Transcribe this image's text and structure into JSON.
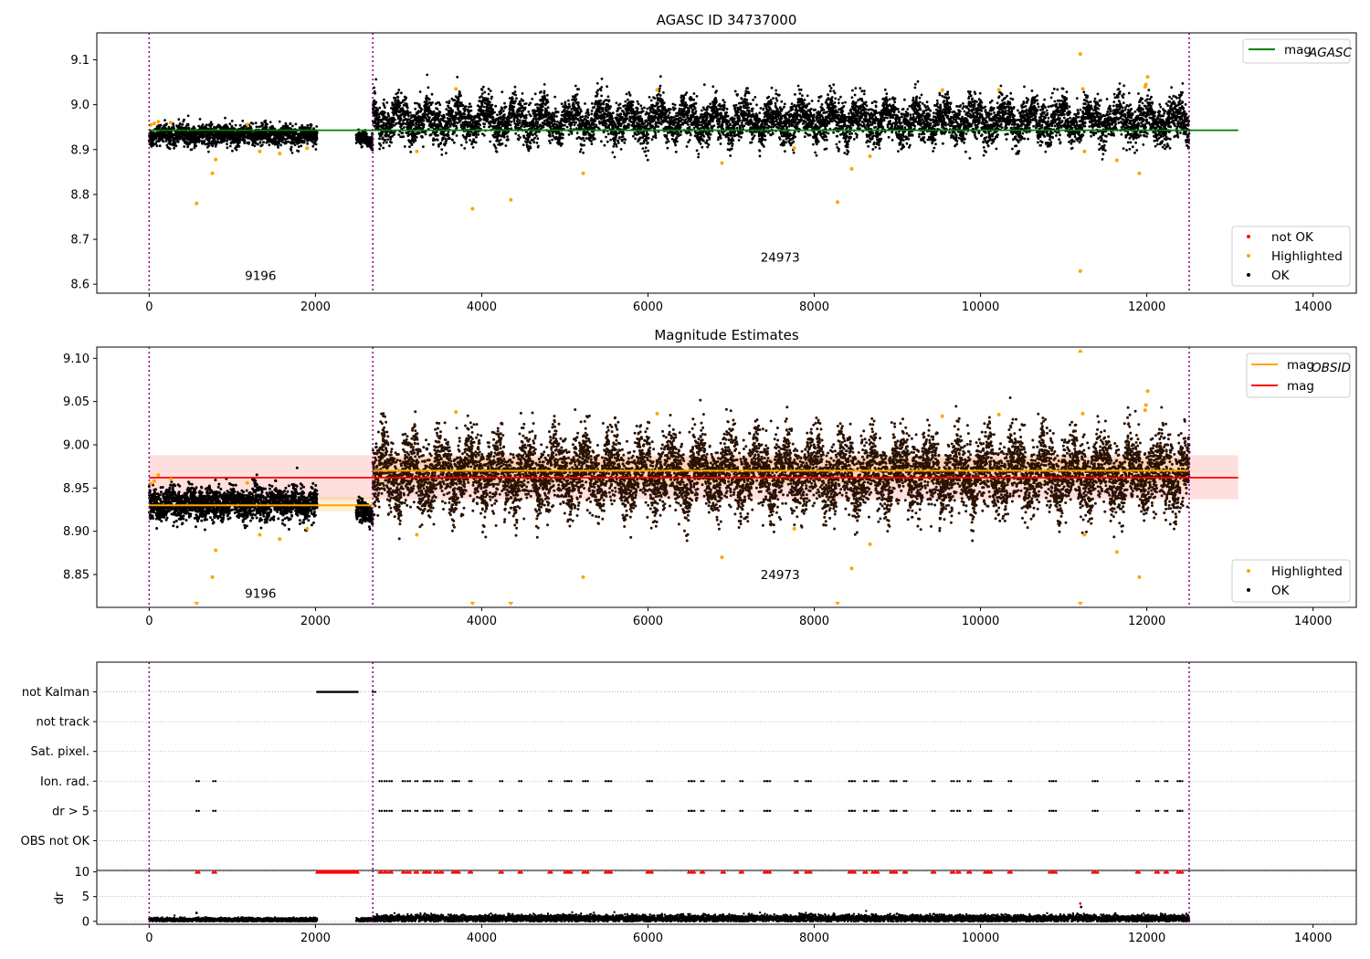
{
  "chart_data": [
    {
      "type": "scatter",
      "title": "AGASC ID 34737000",
      "xlabel": "",
      "ylabel": "",
      "xlim": [
        -630,
        14520
      ],
      "ylim": [
        8.58,
        9.16
      ],
      "xticks": [
        0,
        2000,
        4000,
        6000,
        8000,
        10000,
        12000,
        14000
      ],
      "xtick_labels": [
        "0",
        "2000",
        "4000",
        "6000",
        "8000",
        "10000",
        "12000",
        "14000"
      ],
      "yticks": [
        8.6,
        8.7,
        8.8,
        8.9,
        9.0,
        9.1
      ],
      "ytick_labels": [
        "8.6",
        "8.7",
        "8.8",
        "8.9",
        "9.0",
        "9.1"
      ],
      "grid": false,
      "vlines": [
        0,
        2690,
        12510
      ],
      "hlines": [
        {
          "name": "mag_AGASC",
          "y": 8.943,
          "x": [
            0,
            13100
          ],
          "color": "#008000"
        }
      ],
      "obsid_labels": [
        {
          "text": "9196",
          "x": 1340,
          "y": 8.61
        },
        {
          "text": "24973",
          "x": 7590,
          "y": 8.65
        }
      ],
      "legend_top": {
        "position": "upper right",
        "entries": [
          {
            "label_main": "mag",
            "label_sub": "AGASC",
            "color": "#008000",
            "marker": "line"
          }
        ]
      },
      "legend_bottom": {
        "position": "lower right",
        "entries": [
          {
            "label": "not OK",
            "color": "#ff0000",
            "marker": "dot"
          },
          {
            "label": "Highlighted",
            "color": "#ffa500",
            "marker": "dot"
          },
          {
            "label": "OK",
            "color": "#000000",
            "marker": "dot"
          }
        ]
      },
      "segments": [
        {
          "x_start": 0,
          "x_end": 2020,
          "mean": 8.932,
          "spread": 0.011
        },
        {
          "x_start": 2490,
          "x_end": 2690,
          "mean": 8.922,
          "spread": 0.008
        },
        {
          "x_start": 2690,
          "x_end": 12510,
          "mean": 8.965,
          "spread": 0.022
        }
      ],
      "highlighted": [
        {
          "x": 20,
          "y": 8.955
        },
        {
          "x": 60,
          "y": 8.958
        },
        {
          "x": 110,
          "y": 8.962
        },
        {
          "x": 260,
          "y": 8.96
        },
        {
          "x": 570,
          "y": 8.78
        },
        {
          "x": 760,
          "y": 8.847
        },
        {
          "x": 800,
          "y": 8.878
        },
        {
          "x": 1180,
          "y": 8.956
        },
        {
          "x": 1330,
          "y": 8.896
        },
        {
          "x": 1570,
          "y": 8.891
        },
        {
          "x": 1900,
          "y": 8.903
        },
        {
          "x": 3220,
          "y": 8.896
        },
        {
          "x": 3690,
          "y": 9.035
        },
        {
          "x": 3890,
          "y": 8.768
        },
        {
          "x": 4350,
          "y": 8.788
        },
        {
          "x": 5220,
          "y": 8.847
        },
        {
          "x": 6110,
          "y": 9.033
        },
        {
          "x": 6890,
          "y": 8.87
        },
        {
          "x": 7760,
          "y": 8.903
        },
        {
          "x": 8280,
          "y": 8.783
        },
        {
          "x": 8450,
          "y": 8.857
        },
        {
          "x": 8670,
          "y": 8.885
        },
        {
          "x": 9540,
          "y": 9.032
        },
        {
          "x": 10220,
          "y": 9.033
        },
        {
          "x": 11200,
          "y": 9.113
        },
        {
          "x": 11230,
          "y": 9.035
        },
        {
          "x": 11250,
          "y": 8.896
        },
        {
          "x": 11200,
          "y": 8.629
        },
        {
          "x": 11640,
          "y": 8.876
        },
        {
          "x": 11910,
          "y": 8.847
        },
        {
          "x": 11980,
          "y": 9.04
        },
        {
          "x": 12010,
          "y": 9.062
        },
        {
          "x": 11990,
          "y": 9.045
        }
      ]
    },
    {
      "type": "scatter",
      "title": "Magnitude Estimates",
      "xlabel": "",
      "ylabel": "",
      "xlim": [
        -630,
        14520
      ],
      "ylim": [
        8.812,
        9.113
      ],
      "xticks": [
        0,
        2000,
        4000,
        6000,
        8000,
        10000,
        12000,
        14000
      ],
      "xtick_labels": [
        "0",
        "2000",
        "4000",
        "6000",
        "8000",
        "10000",
        "12000",
        "14000"
      ],
      "yticks": [
        8.85,
        8.9,
        8.95,
        9.0,
        9.05,
        9.1
      ],
      "ytick_labels": [
        "8.85",
        "8.90",
        "8.95",
        "9.00",
        "9.05",
        "9.10"
      ],
      "grid": false,
      "vlines": [
        0,
        2690,
        12510
      ],
      "mag_line": {
        "y": 8.962,
        "band": [
          8.937,
          8.988
        ],
        "x": [
          0,
          13100
        ],
        "color": "#ff0000"
      },
      "obsid_lines": [
        {
          "x": [
            0,
            2690
          ],
          "y": 8.93,
          "band": [
            8.923,
            8.94
          ]
        },
        {
          "x": [
            2690,
            12510
          ],
          "y": 8.97,
          "band": [
            8.955,
            8.985
          ]
        }
      ],
      "obsid_labels": [
        {
          "text": "9196",
          "x": 1340,
          "y": 8.823
        },
        {
          "text": "24973",
          "x": 7590,
          "y": 8.845
        }
      ],
      "legend_top": {
        "position": "upper right",
        "entries": [
          {
            "label_main": "mag",
            "label_sub": "OBSID",
            "color": "#ffa500",
            "marker": "line"
          },
          {
            "label_main": "mag",
            "label_sub": "",
            "color": "#ff0000",
            "marker": "line"
          }
        ]
      },
      "legend_bottom": {
        "position": "lower right",
        "entries": [
          {
            "label": "Highlighted",
            "color": "#ffa500",
            "marker": "dot"
          },
          {
            "label": "OK",
            "color": "#000000",
            "marker": "dot"
          }
        ]
      },
      "segments": [
        {
          "x_start": 0,
          "x_end": 2020,
          "mean": 8.932,
          "spread": 0.009
        },
        {
          "x_start": 2490,
          "x_end": 2690,
          "mean": 8.921,
          "spread": 0.006
        },
        {
          "x_start": 2690,
          "x_end": 12510,
          "mean": 8.967,
          "spread": 0.02
        }
      ],
      "highlighted": [
        {
          "x": 20,
          "y": 8.955
        },
        {
          "x": 60,
          "y": 8.958
        },
        {
          "x": 110,
          "y": 8.965
        },
        {
          "x": 260,
          "y": 8.96
        },
        {
          "x": 760,
          "y": 8.847
        },
        {
          "x": 800,
          "y": 8.878
        },
        {
          "x": 1180,
          "y": 8.956
        },
        {
          "x": 1330,
          "y": 8.896
        },
        {
          "x": 1570,
          "y": 8.891
        },
        {
          "x": 1900,
          "y": 8.903
        },
        {
          "x": 3220,
          "y": 8.896
        },
        {
          "x": 3690,
          "y": 9.038
        },
        {
          "x": 5220,
          "y": 8.847
        },
        {
          "x": 6110,
          "y": 9.036
        },
        {
          "x": 6890,
          "y": 8.87
        },
        {
          "x": 7760,
          "y": 8.903
        },
        {
          "x": 8450,
          "y": 8.857
        },
        {
          "x": 8670,
          "y": 8.885
        },
        {
          "x": 9540,
          "y": 9.033
        },
        {
          "x": 10220,
          "y": 9.035
        },
        {
          "x": 11230,
          "y": 9.036
        },
        {
          "x": 11250,
          "y": 8.896
        },
        {
          "x": 11640,
          "y": 8.876
        },
        {
          "x": 11910,
          "y": 8.847
        },
        {
          "x": 11980,
          "y": 9.04
        },
        {
          "x": 12010,
          "y": 9.062
        },
        {
          "x": 11990,
          "y": 9.046
        }
      ],
      "off_scale_low": [
        570,
        3890,
        4350,
        8280,
        11200
      ],
      "off_scale_high": [
        11200
      ]
    },
    {
      "type": "scatter",
      "title": "",
      "xlabel": "",
      "ylabel": "",
      "xlim": [
        -630,
        14520
      ],
      "ylim": [
        0,
        7
      ],
      "xticks": [],
      "xtick_labels": [],
      "yticks": [
        6,
        5,
        4,
        3,
        2,
        1
      ],
      "ytick_labels": [
        "not Kalman",
        "not track",
        "Sat. pixel.",
        "Ion. rad.",
        "dr > 5",
        "OBS not OK"
      ],
      "grid": true,
      "vlines": [
        0,
        2690,
        12510
      ],
      "flags": [
        {
          "label": "not Kalman",
          "row": 6,
          "ranges": [
            [
              2020,
              2510
            ]
          ],
          "points": [
            2690
          ]
        },
        {
          "label": "not track",
          "row": 5,
          "ranges": [],
          "points": []
        },
        {
          "label": "Sat. pixel.",
          "row": 4,
          "ranges": [],
          "points": []
        },
        {
          "label": "Ion. rad.",
          "row": 3,
          "ranges": [],
          "points": [
            570,
            770,
            2770,
            2830,
            2890,
            3050,
            3110,
            3200,
            3300,
            3350,
            3440,
            3500,
            3650,
            3700,
            3850,
            4220,
            4450,
            4810,
            5000,
            5050,
            5220,
            5250,
            5490,
            5530,
            5990,
            6020,
            6490,
            6530,
            6640,
            6890,
            7110,
            7400,
            7440,
            7770,
            7900,
            7930,
            8420,
            8460,
            8600,
            8700,
            8740,
            8920,
            8960,
            9080,
            9420,
            9650,
            9720,
            9850,
            10050,
            10100,
            10340,
            10830,
            10880,
            11350,
            11380,
            11880,
            12110,
            12220,
            12370,
            12400
          ]
        },
        {
          "label": "dr > 5",
          "row": 2,
          "ranges": [],
          "points": [
            570,
            770,
            2770,
            2830,
            2890,
            3050,
            3110,
            3200,
            3300,
            3350,
            3440,
            3500,
            3650,
            3700,
            3850,
            4220,
            4450,
            4810,
            5000,
            5050,
            5220,
            5250,
            5490,
            5530,
            5990,
            6020,
            6490,
            6530,
            6640,
            6890,
            7110,
            7400,
            7440,
            7770,
            7900,
            7930,
            8420,
            8460,
            8600,
            8700,
            8740,
            8920,
            8960,
            9080,
            9420,
            9650,
            9720,
            9850,
            10050,
            10100,
            10340,
            10830,
            10880,
            11350,
            11380,
            11880,
            12110,
            12220,
            12370,
            12400
          ]
        },
        {
          "label": "OBS not OK",
          "row": 1,
          "ranges": [],
          "points": []
        }
      ]
    },
    {
      "type": "scatter",
      "title": "",
      "xlabel": "",
      "ylabel": "dr",
      "xlim": [
        -630,
        14520
      ],
      "ylim": [
        -0.6,
        10.3
      ],
      "xticks": [
        0,
        2000,
        4000,
        6000,
        8000,
        10000,
        12000,
        14000
      ],
      "xtick_labels": [
        "0",
        "2000",
        "4000",
        "6000",
        "8000",
        "10000",
        "12000",
        "14000"
      ],
      "yticks": [
        0,
        5,
        10
      ],
      "ytick_labels": [
        "0",
        "5",
        "10"
      ],
      "grid": true,
      "vlines": [
        0,
        2690,
        12510
      ],
      "segments": [
        {
          "x_start": 0,
          "x_end": 2020,
          "mean": 0.3,
          "spread": 0.2
        },
        {
          "x_start": 2490,
          "x_end": 2690,
          "mean": 0.3,
          "spread": 0.2
        },
        {
          "x_start": 2690,
          "x_end": 12510,
          "mean": 0.6,
          "spread": 0.35
        }
      ],
      "outliers": [
        {
          "x": 570,
          "y": 1.7
        },
        {
          "x": 7960,
          "y": 1.5
        },
        {
          "x": 11200,
          "y": 3.6
        },
        {
          "x": 11210,
          "y": 2.9
        },
        {
          "x": 11620,
          "y": 1.6
        }
      ],
      "clipped_red": {
        "y": 10,
        "range": [
          2020,
          2510
        ],
        "points": [
          570,
          770,
          2770,
          2830,
          2890,
          3050,
          3110,
          3200,
          3300,
          3350,
          3440,
          3500,
          3650,
          3700,
          3850,
          4220,
          4450,
          4810,
          5000,
          5050,
          5220,
          5250,
          5490,
          5530,
          5990,
          6020,
          6490,
          6530,
          6640,
          6890,
          7110,
          7400,
          7440,
          7770,
          7900,
          7930,
          8420,
          8460,
          8600,
          8700,
          8740,
          8920,
          8960,
          9080,
          9420,
          9650,
          9720,
          9850,
          10050,
          10100,
          10340,
          10830,
          10880,
          11350,
          11380,
          11880,
          12110,
          12220,
          12370,
          12400
        ]
      }
    }
  ]
}
